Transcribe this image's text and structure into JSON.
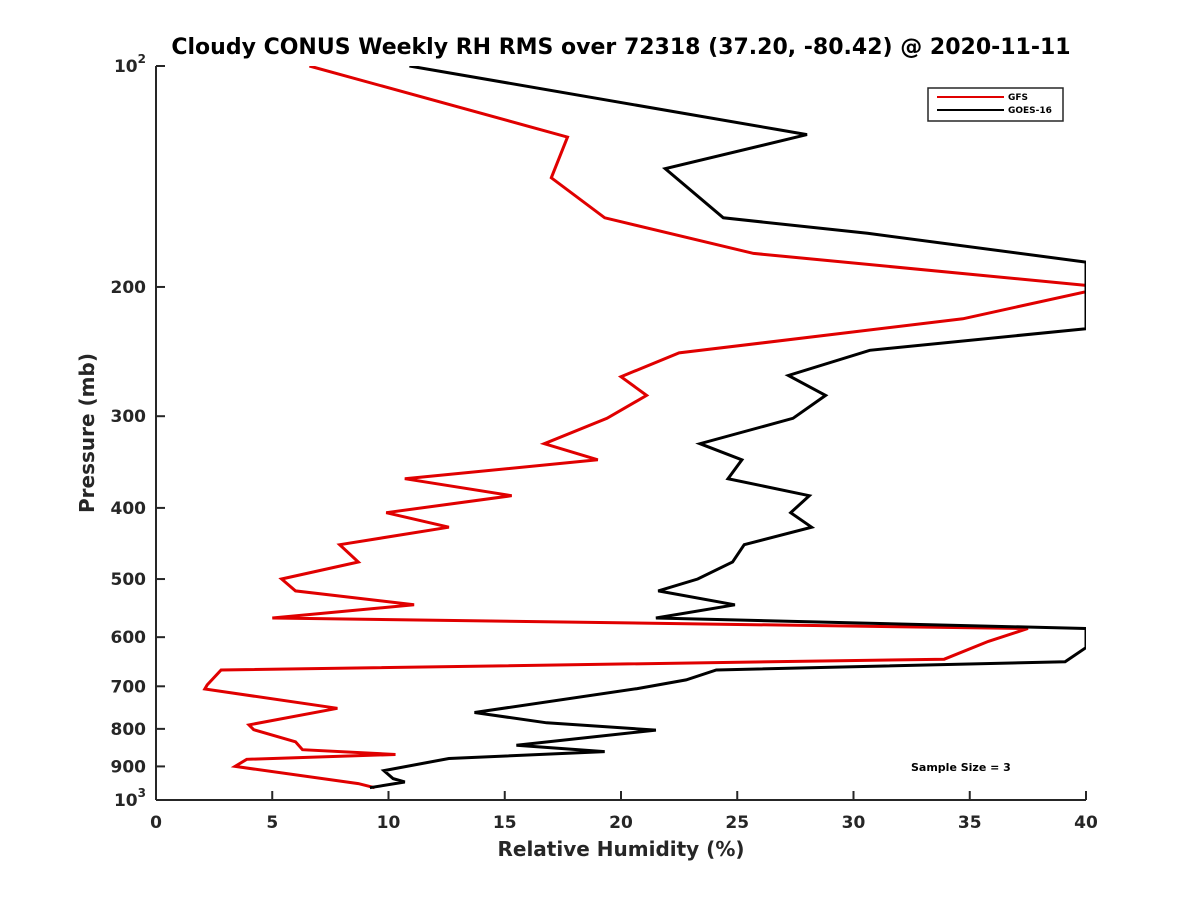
{
  "chart_data": {
    "type": "line",
    "title": "Cloudy CONUS Weekly RH RMS over 72318 (37.20, -80.42) @ 2020-11-11",
    "xlabel": "Relative Humidity (%)",
    "ylabel": "Pressure (mb)",
    "xlim": [
      0,
      40
    ],
    "ylim": [
      100,
      1000
    ],
    "y_scale": "log",
    "y_reversed": true,
    "grid": false,
    "legend_position": "top-right",
    "x_ticks": [
      {
        "value": 0,
        "label": "0"
      },
      {
        "value": 5,
        "label": "5"
      },
      {
        "value": 10,
        "label": "10"
      },
      {
        "value": 15,
        "label": "15"
      },
      {
        "value": 20,
        "label": "20"
      },
      {
        "value": 25,
        "label": "25"
      },
      {
        "value": 30,
        "label": "30"
      },
      {
        "value": 35,
        "label": "35"
      },
      {
        "value": 40,
        "label": "40"
      }
    ],
    "y_ticks": [
      {
        "value": 100,
        "label": "10",
        "sup": "2"
      },
      {
        "value": 200,
        "label": "200",
        "sup": ""
      },
      {
        "value": 300,
        "label": "300",
        "sup": ""
      },
      {
        "value": 400,
        "label": "400",
        "sup": ""
      },
      {
        "value": 500,
        "label": "500",
        "sup": ""
      },
      {
        "value": 600,
        "label": "600",
        "sup": ""
      },
      {
        "value": 700,
        "label": "700",
        "sup": ""
      },
      {
        "value": 800,
        "label": "800",
        "sup": ""
      },
      {
        "value": 900,
        "label": "900",
        "sup": ""
      },
      {
        "value": 1000,
        "label": "10",
        "sup": "3"
      }
    ],
    "annotation": "Sample Size = 3",
    "series": [
      {
        "name": "GFS",
        "color": "#e00000",
        "points": [
          {
            "x": 6.6,
            "p": 100
          },
          {
            "x": 17.7,
            "p": 125
          },
          {
            "x": 17.0,
            "p": 142
          },
          {
            "x": 19.3,
            "p": 161
          },
          {
            "x": 25.7,
            "p": 180
          },
          {
            "x": 40.0,
            "p": 199
          },
          {
            "x": 40.0,
            "p": 203
          },
          {
            "x": 34.7,
            "p": 221
          },
          {
            "x": 22.5,
            "p": 246
          },
          {
            "x": 20.0,
            "p": 265
          },
          {
            "x": 21.1,
            "p": 281
          },
          {
            "x": 19.4,
            "p": 302
          },
          {
            "x": 16.7,
            "p": 327
          },
          {
            "x": 19.0,
            "p": 344
          },
          {
            "x": 10.7,
            "p": 365
          },
          {
            "x": 15.3,
            "p": 385
          },
          {
            "x": 9.9,
            "p": 406
          },
          {
            "x": 12.6,
            "p": 425
          },
          {
            "x": 7.9,
            "p": 449
          },
          {
            "x": 8.7,
            "p": 474
          },
          {
            "x": 5.4,
            "p": 500
          },
          {
            "x": 6.0,
            "p": 519
          },
          {
            "x": 11.1,
            "p": 542
          },
          {
            "x": 5.0,
            "p": 565
          },
          {
            "x": 37.5,
            "p": 584
          },
          {
            "x": 35.8,
            "p": 608
          },
          {
            "x": 33.9,
            "p": 643
          },
          {
            "x": 2.8,
            "p": 665
          },
          {
            "x": 2.2,
            "p": 697
          },
          {
            "x": 2.1,
            "p": 706
          },
          {
            "x": 7.8,
            "p": 750
          },
          {
            "x": 4.0,
            "p": 790
          },
          {
            "x": 4.2,
            "p": 802
          },
          {
            "x": 6.0,
            "p": 833
          },
          {
            "x": 6.3,
            "p": 854
          },
          {
            "x": 10.3,
            "p": 867
          },
          {
            "x": 3.9,
            "p": 880
          },
          {
            "x": 3.4,
            "p": 900
          },
          {
            "x": 8.7,
            "p": 950
          },
          {
            "x": 9.4,
            "p": 962
          }
        ]
      },
      {
        "name": "GOES-16",
        "color": "#000000",
        "points": [
          {
            "x": 10.9,
            "p": 100
          },
          {
            "x": 28.0,
            "p": 124
          },
          {
            "x": 21.9,
            "p": 138
          },
          {
            "x": 24.4,
            "p": 161
          },
          {
            "x": 30.6,
            "p": 169
          },
          {
            "x": 40.0,
            "p": 185
          },
          {
            "x": 40.0,
            "p": 228
          },
          {
            "x": 30.7,
            "p": 244
          },
          {
            "x": 27.2,
            "p": 264
          },
          {
            "x": 28.8,
            "p": 281
          },
          {
            "x": 27.4,
            "p": 302
          },
          {
            "x": 23.4,
            "p": 327
          },
          {
            "x": 25.2,
            "p": 344
          },
          {
            "x": 24.6,
            "p": 365
          },
          {
            "x": 28.1,
            "p": 385
          },
          {
            "x": 27.3,
            "p": 406
          },
          {
            "x": 28.2,
            "p": 425
          },
          {
            "x": 25.3,
            "p": 449
          },
          {
            "x": 24.8,
            "p": 474
          },
          {
            "x": 23.3,
            "p": 500
          },
          {
            "x": 21.6,
            "p": 519
          },
          {
            "x": 24.9,
            "p": 542
          },
          {
            "x": 21.5,
            "p": 565
          },
          {
            "x": 40.0,
            "p": 584
          },
          {
            "x": 40.0,
            "p": 620
          },
          {
            "x": 39.1,
            "p": 648
          },
          {
            "x": 24.1,
            "p": 665
          },
          {
            "x": 22.8,
            "p": 686
          },
          {
            "x": 20.7,
            "p": 705
          },
          {
            "x": 13.7,
            "p": 760
          },
          {
            "x": 16.8,
            "p": 785
          },
          {
            "x": 21.5,
            "p": 803
          },
          {
            "x": 15.5,
            "p": 842
          },
          {
            "x": 19.3,
            "p": 859
          },
          {
            "x": 12.6,
            "p": 878
          },
          {
            "x": 9.8,
            "p": 912
          },
          {
            "x": 10.2,
            "p": 935
          },
          {
            "x": 10.7,
            "p": 945
          },
          {
            "x": 9.2,
            "p": 962
          }
        ]
      }
    ]
  }
}
